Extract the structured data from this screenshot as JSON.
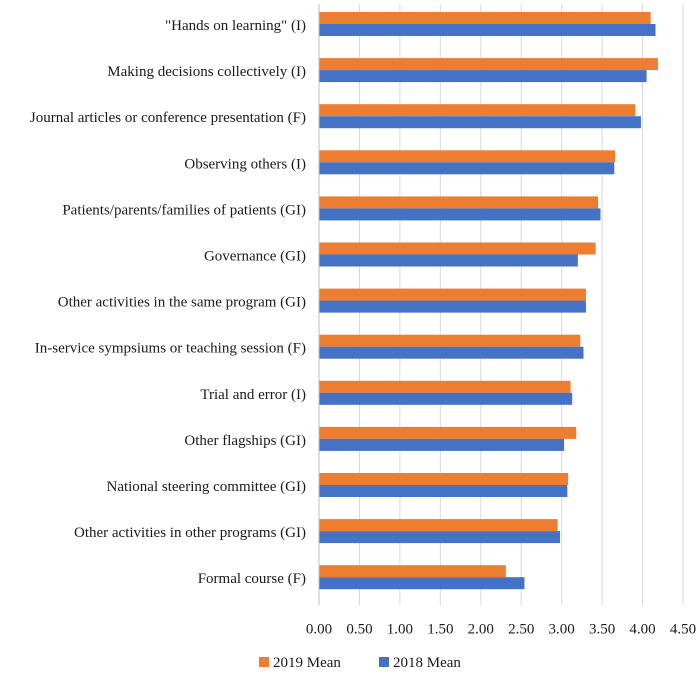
{
  "chart_data": {
    "type": "bar",
    "orientation": "horizontal",
    "title": "",
    "xlabel": "",
    "ylabel": "",
    "xlim": [
      0,
      4.5
    ],
    "x_ticks": [
      "0.00",
      "0.50",
      "1.00",
      "1.50",
      "2.00",
      "2.50",
      "3.00",
      "3.50",
      "4.00",
      "4.50"
    ],
    "x_tick_values": [
      0,
      0.5,
      1,
      1.5,
      2,
      2.5,
      3,
      3.5,
      4,
      4.5
    ],
    "grid": "vertical",
    "legend_position": "bottom-left",
    "categories": [
      "\"Hands on learning\" (I)",
      "Making decisions collectively (I)",
      "Journal articles or conference presentation (F)",
      "Observing others (I)",
      "Patients/parents/families of patients (GI)",
      "Governance (GI)",
      "Other activities in the same program (GI)",
      "In-service sympsiums or teaching session (F)",
      "Trial and error (I)",
      "Other flagships (GI)",
      "National steering committee (GI)",
      "Other activities in other programs (GI)",
      "Formal course (F)"
    ],
    "series": [
      {
        "name": "2019 Mean",
        "color": "#ED7D31",
        "values": [
          4.1,
          4.19,
          3.91,
          3.66,
          3.45,
          3.42,
          3.3,
          3.23,
          3.11,
          3.18,
          3.08,
          2.95,
          2.31
        ]
      },
      {
        "name": "2018 Mean",
        "color": "#4472C4",
        "values": [
          4.16,
          4.05,
          3.98,
          3.65,
          3.48,
          3.2,
          3.3,
          3.27,
          3.13,
          3.03,
          3.07,
          2.98,
          2.54
        ]
      }
    ]
  }
}
